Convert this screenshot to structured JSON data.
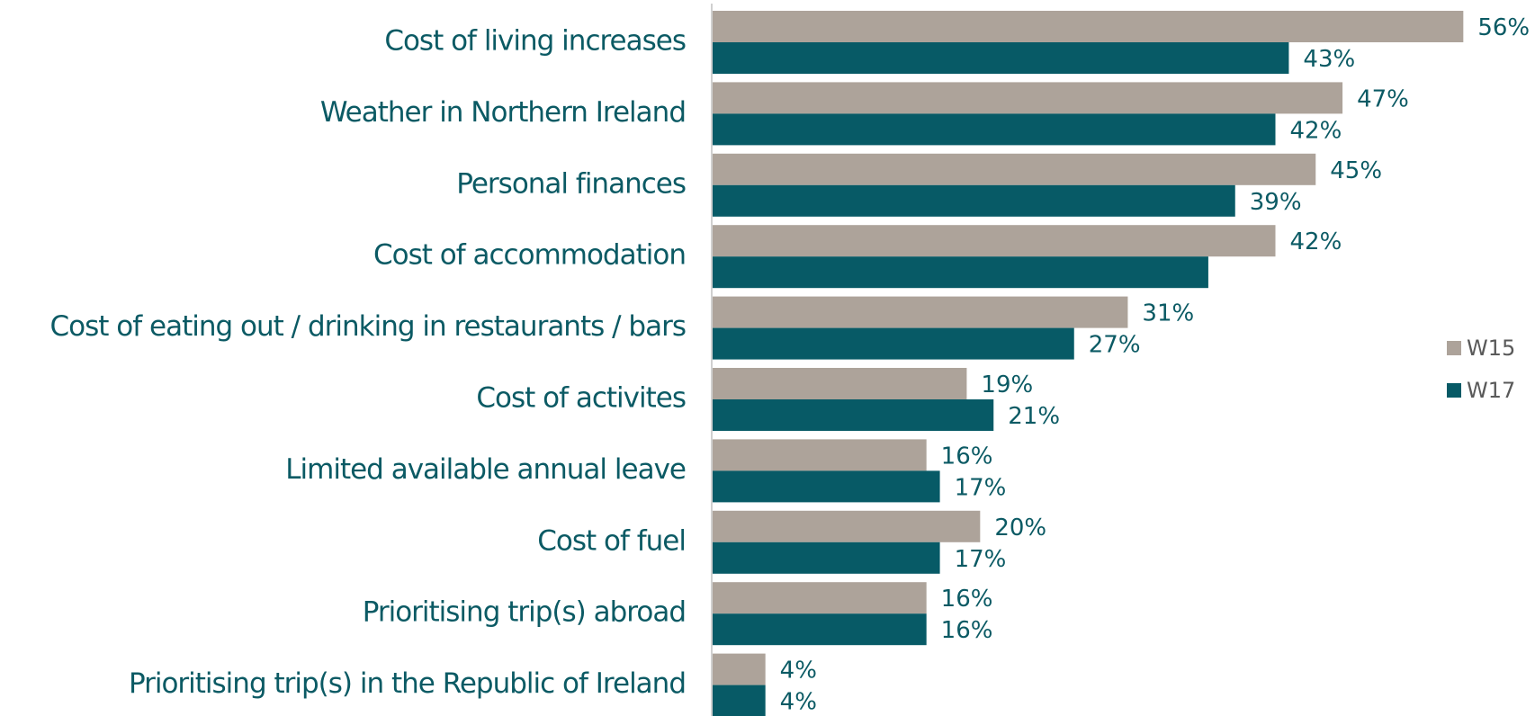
{
  "chart_data": {
    "type": "bar",
    "orientation": "horizontal",
    "categories": [
      "Cost of living increases",
      "Weather in Northern Ireland",
      "Personal finances",
      "Cost of accommodation",
      "Cost of eating out / drinking in restaurants / bars",
      "Cost of activites",
      "Limited available annual leave",
      "Cost of fuel",
      "Prioritising trip(s) abroad",
      "Prioritising trip(s) in the Republic of Ireland"
    ],
    "series": [
      {
        "name": "W15",
        "color": "#ada39a",
        "values": [
          56,
          47,
          45,
          42,
          31,
          19,
          16,
          20,
          16,
          4
        ],
        "value_labels": [
          "56%",
          "47%",
          "45%",
          "42%",
          "31%",
          "19%",
          "16%",
          "20%",
          "16%",
          "4%"
        ]
      },
      {
        "name": "W17",
        "color": "#075a66",
        "values": [
          43,
          42,
          39,
          37,
          27,
          21,
          17,
          17,
          16,
          4
        ],
        "value_labels": [
          "43%",
          "42%",
          "39%",
          null,
          "27%",
          "21%",
          "17%",
          "17%",
          "16%",
          "4%"
        ]
      }
    ],
    "xlim": [
      0,
      60
    ],
    "legend": "right"
  }
}
